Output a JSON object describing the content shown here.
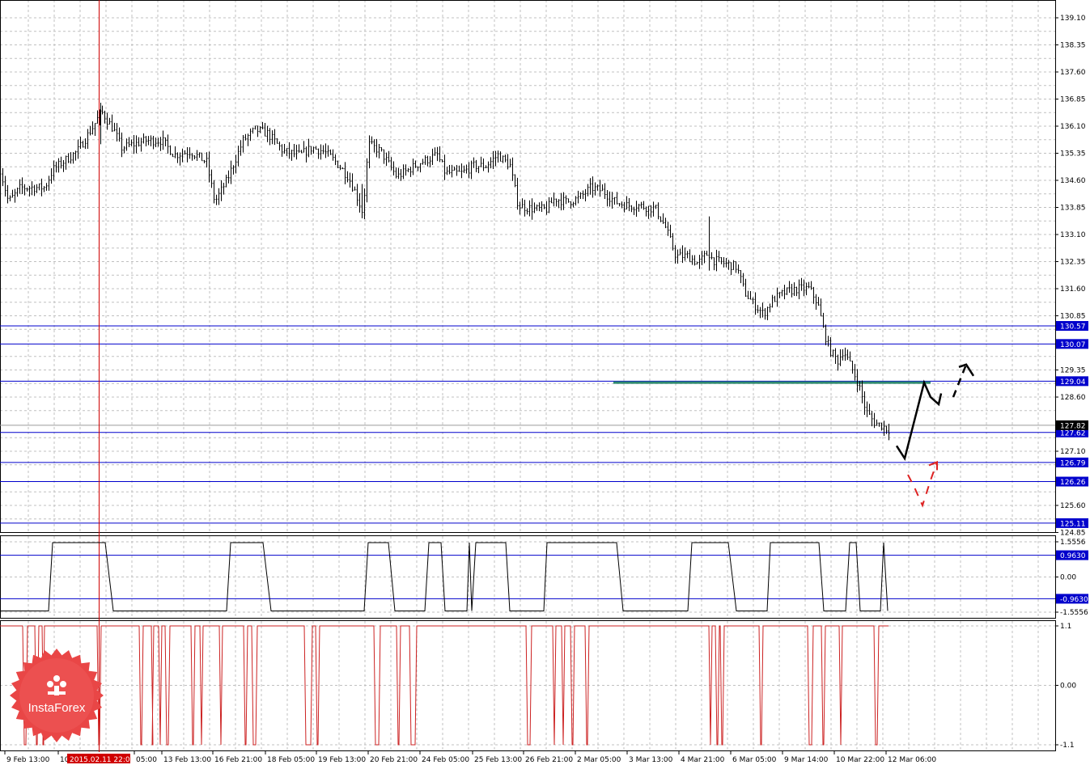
{
  "chart_data": [
    {
      "type": "line",
      "pane": "price",
      "title": "",
      "ylim": [
        124.6,
        139.65
      ],
      "y_ticks": [
        "139.10",
        "138.35",
        "137.60",
        "136.85",
        "136.10",
        "135.35",
        "134.60",
        "133.85",
        "133.10",
        "132.35",
        "131.60",
        "130.85",
        "129.35",
        "128.60",
        "127.10",
        "125.60",
        "124.85"
      ],
      "x_ticks": [
        "9 Feb 13:00",
        "10 Feb",
        "05:00",
        "13 Feb 13:00",
        "16 Feb 21:00",
        "18 Feb 05:00",
        "19 Feb 13:00",
        "20 Feb 21:00",
        "24 Feb 05:00",
        "25 Feb 13:00",
        "26 Feb 21:00",
        "2 Mar 05:00",
        "3 Mar 13:00",
        "4 Mar 21:00",
        "6 Mar 05:00",
        "9 Mar 14:00",
        "10 Mar 22:00",
        "12 Mar 06:00"
      ],
      "cursor_label": "2015.02.11 22:00",
      "current_price": "127.82",
      "grid": true,
      "price_keypoints": [
        [
          0,
          134.9
        ],
        [
          10,
          134.0
        ],
        [
          25,
          134.4
        ],
        [
          55,
          134.4
        ],
        [
          65,
          134.9
        ],
        [
          95,
          135.4
        ],
        [
          115,
          136.1
        ],
        [
          125,
          136.5
        ],
        [
          140,
          136.0
        ],
        [
          150,
          135.5
        ],
        [
          165,
          135.6
        ],
        [
          180,
          135.7
        ],
        [
          200,
          135.7
        ],
        [
          215,
          135.3
        ],
        [
          235,
          135.4
        ],
        [
          255,
          135.1
        ],
        [
          265,
          134.0
        ],
        [
          280,
          134.6
        ],
        [
          300,
          135.7
        ],
        [
          315,
          136.0
        ],
        [
          330,
          135.9
        ],
        [
          350,
          135.4
        ],
        [
          370,
          135.3
        ],
        [
          385,
          135.5
        ],
        [
          400,
          135.4
        ],
        [
          415,
          135.1
        ],
        [
          430,
          134.7
        ],
        [
          440,
          134.2
        ],
        [
          448,
          133.7
        ],
        [
          455,
          135.6
        ],
        [
          470,
          135.4
        ],
        [
          490,
          134.7
        ],
        [
          505,
          134.9
        ],
        [
          520,
          135.1
        ],
        [
          540,
          135.3
        ],
        [
          550,
          134.8
        ],
        [
          570,
          134.8
        ],
        [
          585,
          135.0
        ],
        [
          600,
          135.0
        ],
        [
          615,
          135.3
        ],
        [
          630,
          135.0
        ],
        [
          640,
          133.9
        ],
        [
          660,
          133.8
        ],
        [
          675,
          133.8
        ],
        [
          685,
          134.1
        ],
        [
          700,
          134.0
        ],
        [
          715,
          134.1
        ],
        [
          730,
          134.4
        ],
        [
          745,
          134.3
        ],
        [
          760,
          134.0
        ],
        [
          775,
          133.9
        ],
        [
          790,
          133.9
        ],
        [
          810,
          133.8
        ],
        [
          822,
          133.3
        ],
        [
          835,
          132.5
        ],
        [
          850,
          132.5
        ],
        [
          862,
          132.3
        ],
        [
          875,
          132.6
        ],
        [
          880,
          132.4
        ],
        [
          895,
          132.3
        ],
        [
          910,
          132.2
        ],
        [
          920,
          131.5
        ],
        [
          930,
          131.2
        ],
        [
          943,
          130.9
        ],
        [
          955,
          131.3
        ],
        [
          970,
          131.5
        ],
        [
          985,
          131.6
        ],
        [
          1000,
          131.6
        ],
        [
          1010,
          131.2
        ],
        [
          1018,
          130.4
        ],
        [
          1025,
          129.9
        ],
        [
          1035,
          129.6
        ],
        [
          1042,
          129.9
        ],
        [
          1050,
          129.5
        ],
        [
          1060,
          129.0
        ],
        [
          1070,
          128.2
        ],
        [
          1080,
          127.9
        ],
        [
          1090,
          127.8
        ],
        [
          1098,
          127.7
        ]
      ],
      "forecast_black": [
        [
          1108,
          127.25
        ],
        [
          1118,
          126.9
        ],
        [
          1142,
          129.0
        ],
        [
          1150,
          128.6
        ],
        [
          1160,
          128.4
        ],
        [
          1163,
          128.7
        ]
      ],
      "forecast_black_dashed": [
        [
          1178,
          128.6
        ],
        [
          1194,
          129.5
        ]
      ],
      "forecast_red_dashed": [
        [
          1122,
          126.45
        ],
        [
          1130,
          126.1
        ],
        [
          1140,
          125.6
        ],
        [
          1150,
          126.3
        ],
        [
          1158,
          126.8
        ]
      ],
      "green_level": {
        "value": 129.0,
        "from_x": 758,
        "to_x": 1150
      }
    },
    {
      "type": "line",
      "pane": "oscillator",
      "ylim": [
        -1.7,
        1.72
      ],
      "y_ticks": [
        "1.5556",
        "0.00",
        "-1.5556"
      ],
      "levels": [
        0.963,
        -0.963
      ],
      "segments": [
        [
          0,
          0
        ],
        [
          60,
          0
        ],
        [
          65,
          1
        ],
        [
          130,
          1
        ],
        [
          140,
          0
        ],
        [
          280,
          0
        ],
        [
          285,
          1
        ],
        [
          325,
          1
        ],
        [
          335,
          0
        ],
        [
          450,
          0
        ],
        [
          455,
          1
        ],
        [
          480,
          1
        ],
        [
          488,
          0
        ],
        [
          525,
          0
        ],
        [
          530,
          1
        ],
        [
          545,
          1
        ],
        [
          550,
          0
        ],
        [
          577,
          0
        ],
        [
          580,
          1
        ],
        [
          583,
          0
        ],
        [
          588,
          1
        ],
        [
          625,
          1
        ],
        [
          630,
          0
        ],
        [
          672,
          0
        ],
        [
          676,
          1
        ],
        [
          762,
          1
        ],
        [
          770,
          0
        ],
        [
          850,
          0
        ],
        [
          855,
          1
        ],
        [
          900,
          1
        ],
        [
          910,
          0
        ],
        [
          948,
          0
        ],
        [
          952,
          1
        ],
        [
          1012,
          1
        ],
        [
          1018,
          0
        ],
        [
          1045,
          0
        ],
        [
          1050,
          1
        ],
        [
          1058,
          1
        ],
        [
          1063,
          0
        ],
        [
          1088,
          0
        ],
        [
          1092,
          1
        ],
        [
          1097,
          0
        ]
      ]
    },
    {
      "type": "line",
      "pane": "signal",
      "ylim": [
        -1.18,
        1.18
      ],
      "y_ticks": [
        "1.1",
        "0.00",
        "-1.1"
      ],
      "spikes": [
        [
          28,
          34
        ],
        [
          43,
          48
        ],
        [
          52,
          55
        ],
        [
          120,
          125
        ],
        [
          172,
          177
        ],
        [
          187,
          190
        ],
        [
          196,
          200
        ],
        [
          204,
          210
        ],
        [
          236,
          241
        ],
        [
          247,
          251
        ],
        [
          271,
          275
        ],
        [
          301,
          306
        ],
        [
          311,
          318
        ],
        [
          376,
          386
        ],
        [
          390,
          395
        ],
        [
          462,
          470
        ],
        [
          490,
          495
        ],
        [
          506,
          515
        ],
        [
          650,
          657
        ],
        [
          683,
          687
        ],
        [
          694,
          698
        ],
        [
          705,
          710
        ],
        [
          723,
          728
        ],
        [
          876,
          880
        ],
        [
          884,
          889
        ],
        [
          890,
          895
        ],
        [
          938,
          943
        ],
        [
          998,
          1005
        ],
        [
          1015,
          1020
        ],
        [
          1037,
          1041
        ],
        [
          1080,
          1086
        ]
      ]
    }
  ],
  "axis_labels": {
    "price_levels": [
      "130.57",
      "130.07",
      "129.04",
      "127.62",
      "126.79",
      "126.26",
      "125.11"
    ],
    "osc_levels": [
      "0.9630",
      "-0.9630"
    ]
  },
  "logo": {
    "text": "InstaForex"
  },
  "colors": {
    "grid": "#c0c0c0",
    "price": "#000000",
    "level_line": "#0000cc",
    "cursor": "#d00000",
    "green": "#2f8a6e",
    "signal": "#cc2222",
    "logo_red": "#e94646"
  }
}
